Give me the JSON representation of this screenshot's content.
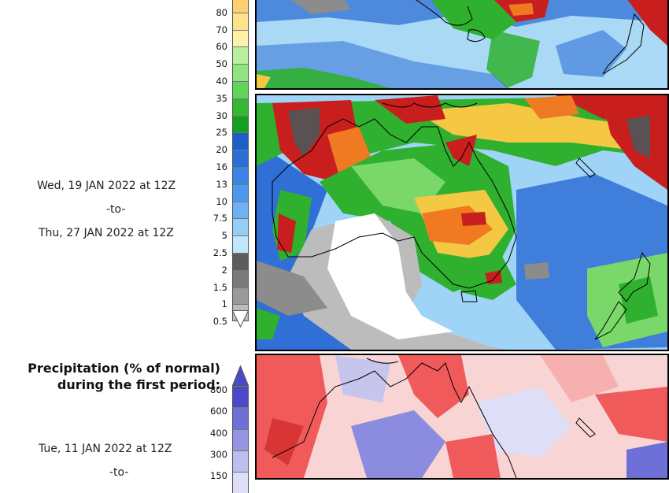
{
  "colorbar_top": {
    "ticks": [
      "80",
      "70",
      "60",
      "50",
      "40",
      "35",
      "30",
      "25",
      "20",
      "16",
      "13",
      "10",
      "7.5",
      "5",
      "2.5",
      "2",
      "1.5",
      "1",
      "0.5"
    ],
    "colors": [
      "#ffd070",
      "#ffe28a",
      "#fff0a8",
      "#b9f0a0",
      "#8fe47f",
      "#5fd35a",
      "#33b833",
      "#159e1f",
      "#1b5fc8",
      "#2a6fd8",
      "#3a84e4",
      "#4c98ee",
      "#6cb2f5",
      "#95cff8",
      "#bfe6fb",
      "#5c5c5c",
      "#7a7a7a",
      "#9a9a9a",
      "#bcbcbc"
    ]
  },
  "middle_period": {
    "line1": "Wed, 19 JAN 2022 at 12Z",
    "line2": "-to-",
    "line3": "Thu, 27 JAN 2022 at 12Z"
  },
  "percent_section": {
    "title_line1": "Precipitation (% of normal)",
    "title_line2": "during the first period:",
    "ticks": [
      "800",
      "600",
      "400",
      "300",
      "150"
    ],
    "colors": [
      "#4a4ac8",
      "#6f6fd8",
      "#9595e4",
      "#bdbdee",
      "#dedef6"
    ],
    "period_line1": "Tue, 11 JAN 2022 at 12Z",
    "period_line2": "-to-"
  },
  "map_colors": {
    "heavy": "#c81e1e",
    "strong": "#f07a22",
    "moderate": "#f4c842",
    "light_green": "#7ad86a",
    "green": "#2fb02f",
    "blue": "#2f6fd6",
    "light_blue": "#9fd4f6",
    "gray": "#8c8c8c",
    "dry": "#ffffff",
    "dark": "#5a5252",
    "below_normal": "#f05a5a",
    "above_normal": "#6f6fd8"
  }
}
